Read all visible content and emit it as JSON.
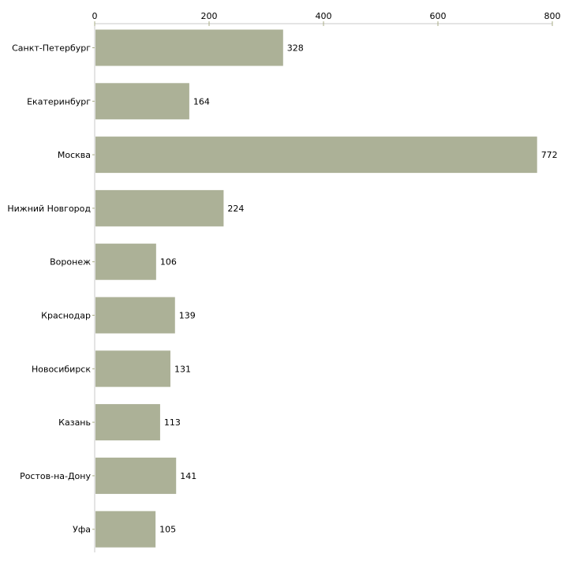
{
  "chart_data": {
    "type": "bar",
    "orientation": "horizontal",
    "title": "",
    "xlabel": "",
    "ylabel": "",
    "xlim": [
      0,
      800
    ],
    "xticks": [
      0,
      200,
      400,
      600,
      800
    ],
    "tick_labels": [
      "0",
      "200",
      "400",
      "600",
      "800"
    ],
    "axis_position": "top",
    "grid": false,
    "categories": [
      "Санкт-Петербург",
      "Екатеринбург",
      "Москва",
      "Нижний Новгород",
      "Воронеж",
      "Краснодар",
      "Новосибирск",
      "Казань",
      "Ростов-на-Дону",
      "Уфа"
    ],
    "values": [
      328,
      164,
      772,
      224,
      106,
      139,
      131,
      113,
      141,
      105
    ],
    "data_labels": [
      "328",
      "164",
      "772",
      "224",
      "106",
      "139",
      "131",
      "113",
      "141",
      "105"
    ],
    "colors": {
      "bar": "#acb197",
      "axis": "#c8c8c8",
      "tick": "#a9ad86"
    }
  }
}
